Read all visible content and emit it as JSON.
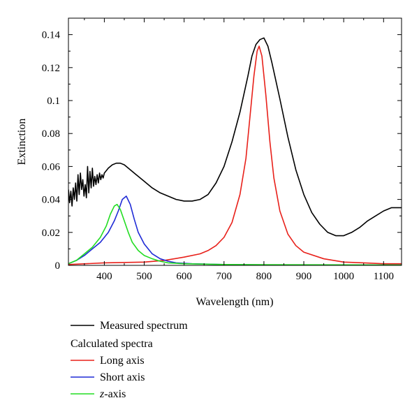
{
  "chart_data": {
    "type": "line",
    "xlabel": "Wavelength (nm)",
    "ylabel": "Extinction",
    "xlim": [
      310,
      1145
    ],
    "ylim": [
      0,
      0.15
    ],
    "x_ticks": [
      400,
      500,
      600,
      700,
      800,
      900,
      1000,
      1100
    ],
    "y_ticks": [
      0,
      0.02,
      0.04,
      0.06,
      0.08,
      0.1,
      0.12,
      0.14
    ],
    "y_tick_labels": [
      "0",
      "0.02",
      "0.04",
      "0.06",
      "0.08",
      "0.1",
      "0.12",
      "0.14"
    ],
    "grid": false,
    "legend": {
      "placement": "below",
      "group_label": "Calculated spectra",
      "entries": [
        {
          "name": "Measured spectrum",
          "color": "#000000"
        },
        {
          "name": "Long axis",
          "color": "#e8201a"
        },
        {
          "name": "Short axis",
          "color": "#1f2bd6"
        },
        {
          "name_prefix": "z",
          "name_suffix": "-axis",
          "color": "#22dd22"
        }
      ]
    },
    "series": [
      {
        "name": "Measured spectrum",
        "color": "#000000",
        "points": [
          [
            310,
            0.046
          ],
          [
            313,
            0.038
          ],
          [
            316,
            0.045
          ],
          [
            319,
            0.036
          ],
          [
            322,
            0.047
          ],
          [
            325,
            0.04
          ],
          [
            328,
            0.05
          ],
          [
            331,
            0.039
          ],
          [
            334,
            0.055
          ],
          [
            337,
            0.043
          ],
          [
            340,
            0.056
          ],
          [
            343,
            0.046
          ],
          [
            346,
            0.052
          ],
          [
            349,
            0.042
          ],
          [
            352,
            0.049
          ],
          [
            355,
            0.041
          ],
          [
            358,
            0.06
          ],
          [
            361,
            0.044
          ],
          [
            364,
            0.057
          ],
          [
            367,
            0.047
          ],
          [
            370,
            0.059
          ],
          [
            373,
            0.048
          ],
          [
            376,
            0.054
          ],
          [
            379,
            0.049
          ],
          [
            382,
            0.055
          ],
          [
            385,
            0.05
          ],
          [
            388,
            0.056
          ],
          [
            391,
            0.052
          ],
          [
            394,
            0.055
          ],
          [
            397,
            0.053
          ],
          [
            400,
            0.056
          ],
          [
            410,
            0.059
          ],
          [
            420,
            0.061
          ],
          [
            430,
            0.062
          ],
          [
            440,
            0.062
          ],
          [
            450,
            0.061
          ],
          [
            460,
            0.059
          ],
          [
            480,
            0.055
          ],
          [
            500,
            0.051
          ],
          [
            520,
            0.047
          ],
          [
            540,
            0.044
          ],
          [
            560,
            0.042
          ],
          [
            580,
            0.04
          ],
          [
            600,
            0.039
          ],
          [
            620,
            0.039
          ],
          [
            640,
            0.04
          ],
          [
            660,
            0.043
          ],
          [
            680,
            0.05
          ],
          [
            700,
            0.06
          ],
          [
            720,
            0.075
          ],
          [
            740,
            0.093
          ],
          [
            760,
            0.115
          ],
          [
            770,
            0.127
          ],
          [
            780,
            0.134
          ],
          [
            790,
            0.137
          ],
          [
            800,
            0.138
          ],
          [
            810,
            0.133
          ],
          [
            820,
            0.123
          ],
          [
            840,
            0.101
          ],
          [
            860,
            0.078
          ],
          [
            880,
            0.058
          ],
          [
            900,
            0.043
          ],
          [
            920,
            0.032
          ],
          [
            940,
            0.025
          ],
          [
            960,
            0.02
          ],
          [
            980,
            0.018
          ],
          [
            1000,
            0.018
          ],
          [
            1020,
            0.02
          ],
          [
            1040,
            0.023
          ],
          [
            1060,
            0.027
          ],
          [
            1080,
            0.03
          ],
          [
            1100,
            0.033
          ],
          [
            1120,
            0.035
          ],
          [
            1145,
            0.035
          ]
        ]
      },
      {
        "name": "Long axis",
        "color": "#e8201a",
        "points": [
          [
            310,
            0.0005
          ],
          [
            400,
            0.0015
          ],
          [
            500,
            0.002
          ],
          [
            550,
            0.003
          ],
          [
            600,
            0.005
          ],
          [
            640,
            0.007
          ],
          [
            660,
            0.009
          ],
          [
            680,
            0.012
          ],
          [
            700,
            0.017
          ],
          [
            720,
            0.026
          ],
          [
            740,
            0.043
          ],
          [
            755,
            0.065
          ],
          [
            765,
            0.09
          ],
          [
            775,
            0.115
          ],
          [
            783,
            0.13
          ],
          [
            788,
            0.133
          ],
          [
            795,
            0.127
          ],
          [
            805,
            0.103
          ],
          [
            815,
            0.075
          ],
          [
            825,
            0.053
          ],
          [
            840,
            0.033
          ],
          [
            860,
            0.019
          ],
          [
            880,
            0.012
          ],
          [
            900,
            0.008
          ],
          [
            950,
            0.004
          ],
          [
            1000,
            0.002
          ],
          [
            1050,
            0.0015
          ],
          [
            1100,
            0.001
          ],
          [
            1145,
            0.001
          ]
        ]
      },
      {
        "name": "Short axis",
        "color": "#1f2bd6",
        "points": [
          [
            310,
            0.001
          ],
          [
            330,
            0.003
          ],
          [
            350,
            0.006
          ],
          [
            370,
            0.01
          ],
          [
            390,
            0.014
          ],
          [
            410,
            0.02
          ],
          [
            425,
            0.027
          ],
          [
            435,
            0.033
          ],
          [
            445,
            0.04
          ],
          [
            455,
            0.042
          ],
          [
            465,
            0.037
          ],
          [
            475,
            0.028
          ],
          [
            485,
            0.02
          ],
          [
            500,
            0.013
          ],
          [
            520,
            0.007
          ],
          [
            540,
            0.004
          ],
          [
            560,
            0.0025
          ],
          [
            580,
            0.0015
          ],
          [
            620,
            0.001
          ],
          [
            700,
            0.0005
          ],
          [
            800,
            0.0003
          ],
          [
            1145,
            0.0002
          ]
        ]
      },
      {
        "name": "z-axis",
        "color": "#22dd22",
        "points": [
          [
            310,
            0.001
          ],
          [
            330,
            0.003
          ],
          [
            350,
            0.007
          ],
          [
            370,
            0.011
          ],
          [
            390,
            0.017
          ],
          [
            405,
            0.024
          ],
          [
            415,
            0.031
          ],
          [
            425,
            0.036
          ],
          [
            432,
            0.037
          ],
          [
            440,
            0.034
          ],
          [
            450,
            0.027
          ],
          [
            460,
            0.02
          ],
          [
            470,
            0.014
          ],
          [
            485,
            0.009
          ],
          [
            500,
            0.006
          ],
          [
            520,
            0.004
          ],
          [
            540,
            0.0025
          ],
          [
            560,
            0.0015
          ],
          [
            600,
            0.001
          ],
          [
            700,
            0.0005
          ],
          [
            1145,
            0.0002
          ]
        ]
      }
    ]
  }
}
